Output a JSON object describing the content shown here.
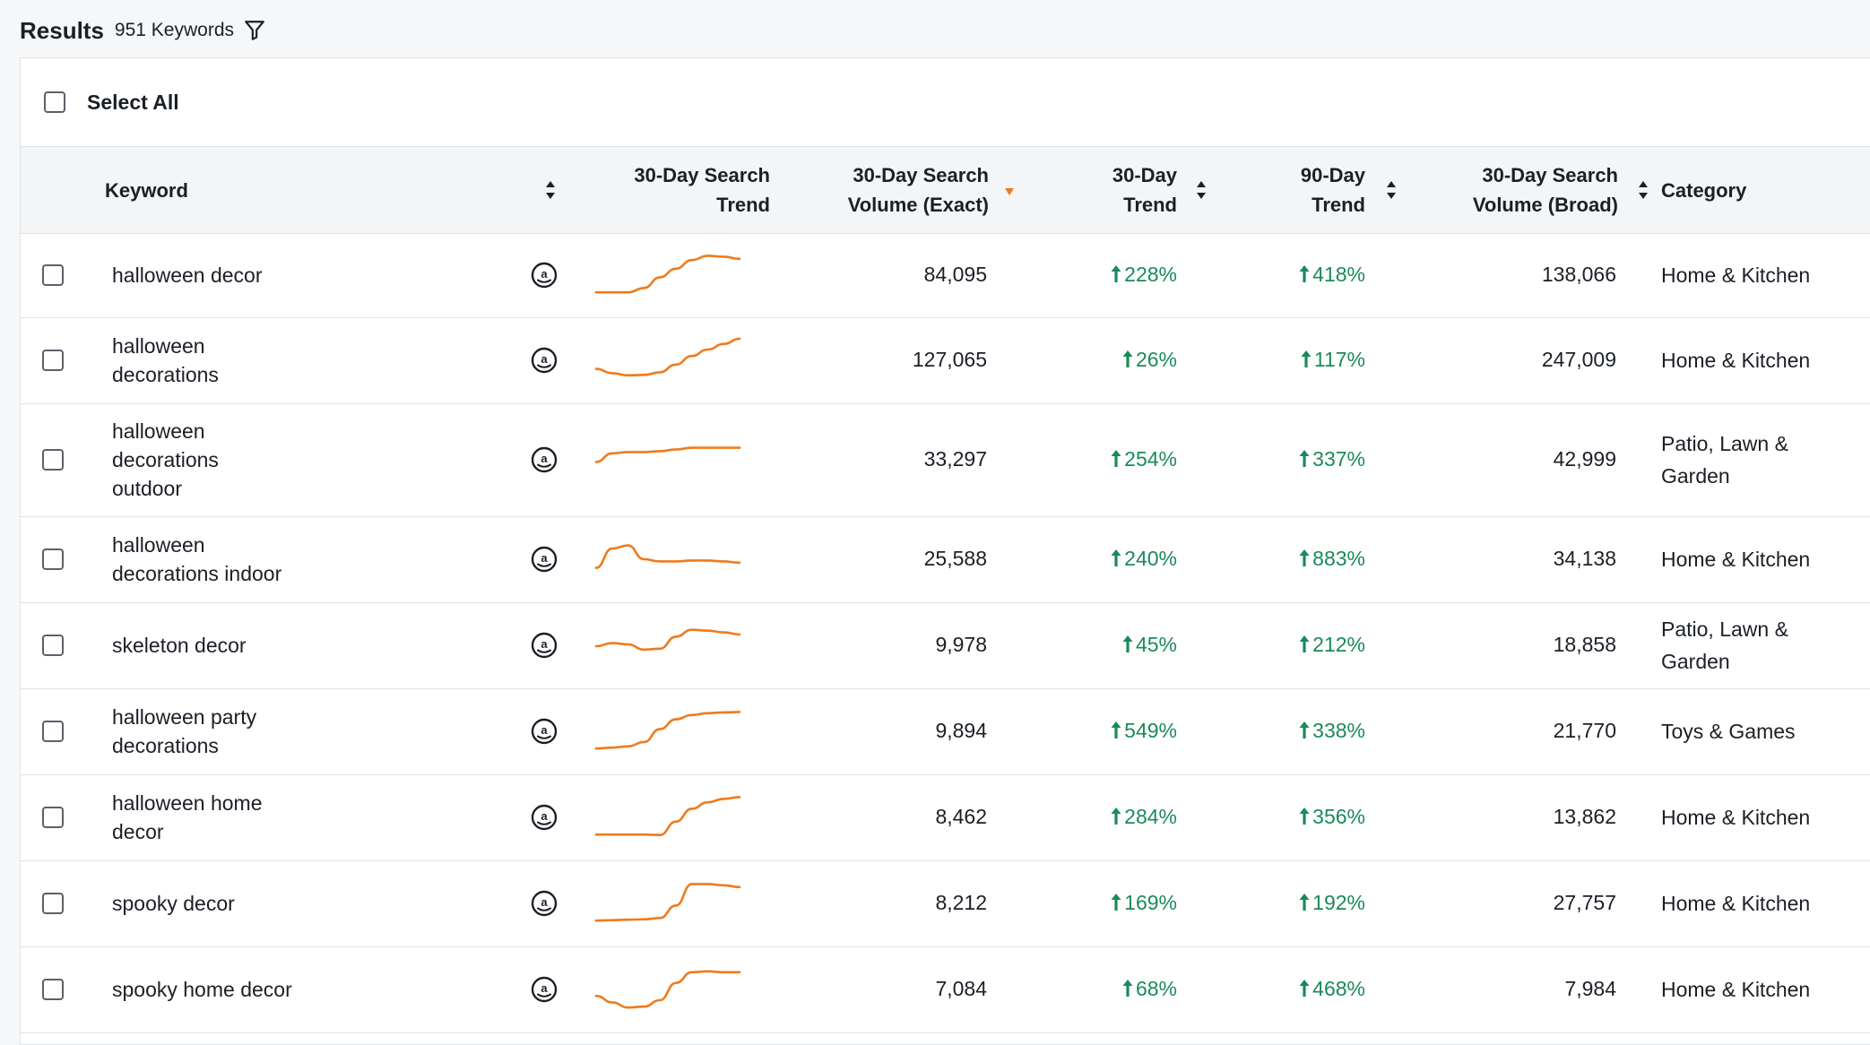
{
  "header": {
    "title": "Results",
    "count": "951 Keywords"
  },
  "select_all": {
    "label": "Select All"
  },
  "columns": {
    "keyword": "Keyword",
    "search_trend_line1": "30-Day Search",
    "search_trend_line2": "Trend",
    "volume_exact_line1": "30-Day Search",
    "volume_exact_line2": "Volume (Exact)",
    "trend30_line1": "30-Day",
    "trend30_line2": "Trend",
    "trend90_line1": "90-Day",
    "trend90_line2": "Trend",
    "volume_broad_line1": "30-Day Search",
    "volume_broad_line2": "Volume (Broad)",
    "category": "Category"
  },
  "colors": {
    "accent_orange": "#f07a1a",
    "positive_green": "#1a8a5a"
  },
  "rows": [
    {
      "keyword_line1": "halloween decor",
      "keyword_line2": "",
      "keyword_line3": "",
      "volume_exact": "84,095",
      "trend30": "228%",
      "trend90": "418%",
      "volume_broad": "138,066",
      "category_line1": "Home & Kitchen",
      "category_line2": "",
      "spark": [
        0.1,
        0.1,
        0.1,
        0.2,
        0.45,
        0.65,
        0.85,
        0.95,
        0.93,
        0.88
      ]
    },
    {
      "keyword_line1": "halloween",
      "keyword_line2": "decorations",
      "keyword_line3": "",
      "volume_exact": "127,065",
      "trend30": "26%",
      "trend90": "117%",
      "volume_broad": "247,009",
      "category_line1": "Home & Kitchen",
      "category_line2": "",
      "spark": [
        0.3,
        0.2,
        0.15,
        0.16,
        0.22,
        0.4,
        0.6,
        0.75,
        0.88,
        1.0
      ]
    },
    {
      "keyword_line1": "halloween",
      "keyword_line2": "decorations",
      "keyword_line3": "outdoor",
      "volume_exact": "33,297",
      "trend30": "254%",
      "trend90": "337%",
      "volume_broad": "42,999",
      "category_line1": "Patio, Lawn &",
      "category_line2": "Garden",
      "spark": [
        0.45,
        0.65,
        0.68,
        0.68,
        0.7,
        0.74,
        0.78,
        0.78,
        0.78,
        0.78
      ]
    },
    {
      "keyword_line1": "halloween",
      "keyword_line2": "decorations indoor",
      "keyword_line3": "",
      "volume_exact": "25,588",
      "trend30": "240%",
      "trend90": "883%",
      "volume_broad": "34,138",
      "category_line1": "Home & Kitchen",
      "category_line2": "",
      "spark": [
        0.3,
        0.75,
        0.82,
        0.5,
        0.45,
        0.45,
        0.47,
        0.47,
        0.45,
        0.42
      ]
    },
    {
      "keyword_line1": "skeleton decor",
      "keyword_line2": "",
      "keyword_line3": "",
      "volume_exact": "9,978",
      "trend30": "45%",
      "trend90": "212%",
      "volume_broad": "18,858",
      "category_line1": "Patio, Lawn &",
      "category_line2": "Garden",
      "spark": [
        0.48,
        0.55,
        0.52,
        0.4,
        0.42,
        0.7,
        0.86,
        0.84,
        0.8,
        0.75
      ]
    },
    {
      "keyword_line1": "halloween party",
      "keyword_line2": "decorations",
      "keyword_line3": "",
      "volume_exact": "9,894",
      "trend30": "549%",
      "trend90": "338%",
      "volume_broad": "21,770",
      "category_line1": "Toys & Games",
      "category_line2": "",
      "spark": [
        0.1,
        0.12,
        0.15,
        0.25,
        0.55,
        0.78,
        0.88,
        0.92,
        0.94,
        0.95
      ]
    },
    {
      "keyword_line1": "halloween home",
      "keyword_line2": "decor",
      "keyword_line3": "",
      "volume_exact": "8,462",
      "trend30": "284%",
      "trend90": "356%",
      "volume_broad": "13,862",
      "category_line1": "Home & Kitchen",
      "category_line2": "",
      "spark": [
        0.1,
        0.1,
        0.1,
        0.1,
        0.09,
        0.4,
        0.7,
        0.85,
        0.93,
        0.97
      ]
    },
    {
      "keyword_line1": "spooky decor",
      "keyword_line2": "",
      "keyword_line3": "",
      "volume_exact": "8,212",
      "trend30": "169%",
      "trend90": "192%",
      "volume_broad": "27,757",
      "category_line1": "Home & Kitchen",
      "category_line2": "",
      "spark": [
        0.1,
        0.11,
        0.12,
        0.13,
        0.16,
        0.45,
        0.95,
        0.95,
        0.92,
        0.88
      ]
    },
    {
      "keyword_line1": "spooky home decor",
      "keyword_line2": "",
      "keyword_line3": "",
      "volume_exact": "7,084",
      "trend30": "68%",
      "trend90": "468%",
      "volume_broad": "7,984",
      "category_line1": "Home & Kitchen",
      "category_line2": "",
      "spark": [
        0.35,
        0.2,
        0.08,
        0.1,
        0.25,
        0.65,
        0.9,
        0.92,
        0.9,
        0.9
      ]
    }
  ]
}
